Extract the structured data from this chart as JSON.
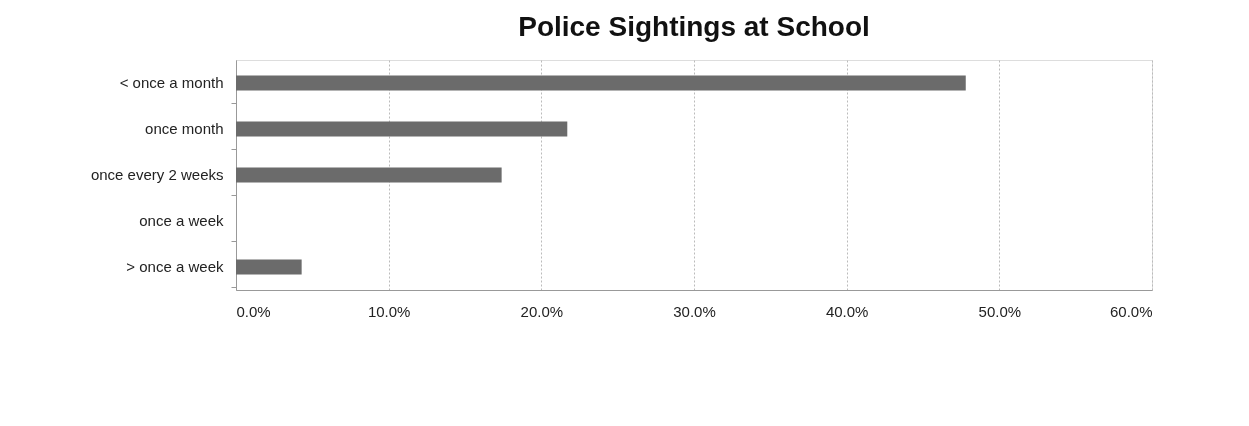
{
  "chart_data": {
    "type": "bar",
    "orientation": "horizontal",
    "title": "Police Sightings at School",
    "categories": [
      "< once a month",
      "once month",
      "once every 2 weeks",
      "once a week",
      "> once a week"
    ],
    "values": [
      47.8,
      21.7,
      17.4,
      null,
      4.3
    ],
    "color": "#6b6b6b",
    "xlim": [
      0,
      60
    ],
    "xticks": [
      {
        "value": 0,
        "label": "0.0%"
      },
      {
        "value": 10,
        "label": "10.0%"
      },
      {
        "value": 20,
        "label": "20.0%"
      },
      {
        "value": 30,
        "label": "30.0%"
      },
      {
        "value": 40,
        "label": "40.0%"
      },
      {
        "value": 50,
        "label": "50.0%"
      },
      {
        "value": 60,
        "label": "60.0%"
      }
    ],
    "grid": "x"
  }
}
